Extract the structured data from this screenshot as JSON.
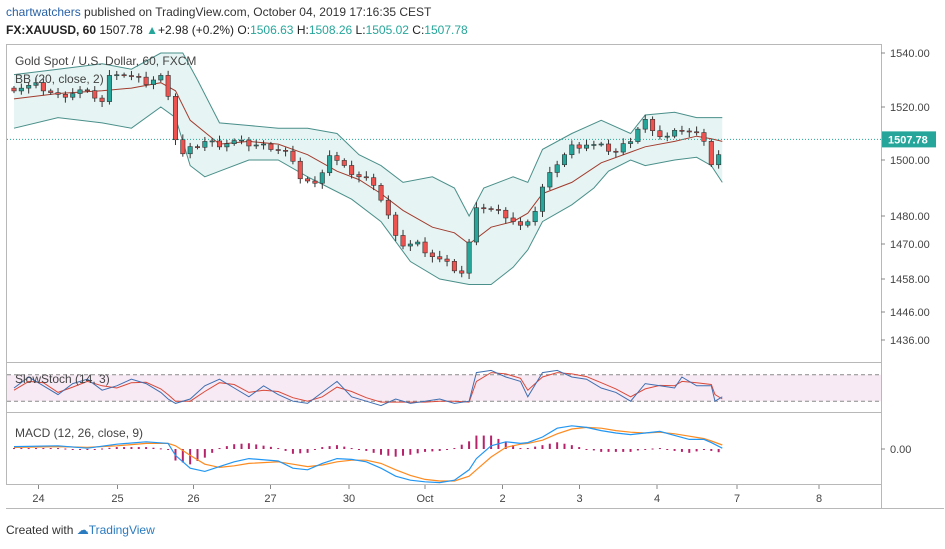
{
  "header": {
    "author": "chartwatchers",
    "published_text": "published on TradingView.com, October 04, 2019 17:16:35 CEST",
    "symbol": "FX:XAUUSD, 60",
    "last": "1507.78",
    "change": "+2.98 (+0.2%)",
    "o_label": "O:",
    "o_value": "1506.63",
    "h_label": "H:",
    "h_value": "1508.26",
    "l_label": "L:",
    "l_value": "1505.02",
    "c_label": "C:",
    "c_value": "1507.78"
  },
  "legends": {
    "main_title": "Gold Spot / U.S. Dollar, 60, FXCM",
    "bb": "BB (20, close, 2)",
    "stoch": "SlowStoch (14, 3)",
    "macd": "MACD (12, 26, close, 9)"
  },
  "footer": {
    "created_with": "Created with",
    "brand": "TradingView"
  },
  "colors": {
    "up": "#26a69a",
    "down": "#ef5350",
    "bb_fill": "#e6f5f3",
    "bb_band": "#4a8f8a",
    "bb_basis": "#a33b2e",
    "stoch_fill": "#f7eaf5",
    "k_line": "#3f6fb0",
    "d_line": "#d94a3a",
    "macd_line": "#2196f3",
    "signal_line": "#ff8a1f",
    "hist": "#b5236b",
    "last_line": "#26a69a"
  },
  "chart_data": [
    {
      "type": "candlestick",
      "title": "Gold Spot / U.S. Dollar, 60, FXCM",
      "overlay": "BB (20, close, 2)",
      "x_ticks": [
        "24",
        "25",
        "26",
        "27",
        "30",
        "Oct",
        "2",
        "3",
        "4",
        "7",
        "8"
      ],
      "y_ticks": [
        1540.0,
        1520.0,
        1507.78,
        1500.0,
        1480.0,
        1470.0,
        1458.0,
        1446.0,
        1436.0
      ],
      "last_price": 1507.78,
      "close_path": [
        [
          0,
          1527
        ],
        [
          3,
          1528
        ],
        [
          6,
          1524
        ],
        [
          9,
          1526
        ],
        [
          11,
          1524
        ],
        [
          12,
          1522
        ],
        [
          13,
          1531
        ],
        [
          14,
          1533
        ],
        [
          16,
          1531
        ],
        [
          18,
          1529
        ],
        [
          20,
          1531
        ],
        [
          21,
          1525
        ],
        [
          22,
          1508
        ],
        [
          23,
          1502
        ],
        [
          24,
          1504
        ],
        [
          26,
          1507
        ],
        [
          28,
          1506
        ],
        [
          30,
          1507
        ],
        [
          32,
          1506
        ],
        [
          35,
          1505
        ],
        [
          37,
          1503
        ],
        [
          39,
          1494
        ],
        [
          41,
          1491
        ],
        [
          43,
          1502
        ],
        [
          45,
          1497
        ],
        [
          47,
          1494
        ],
        [
          49,
          1492
        ],
        [
          50,
          1486
        ],
        [
          51,
          1480
        ],
        [
          52,
          1472
        ],
        [
          53,
          1470
        ],
        [
          55,
          1470
        ],
        [
          57,
          1466
        ],
        [
          59,
          1463
        ],
        [
          61,
          1460
        ],
        [
          62,
          1470
        ],
        [
          63,
          1484
        ],
        [
          65,
          1482
        ],
        [
          67,
          1480
        ],
        [
          69,
          1476
        ],
        [
          71,
          1482
        ],
        [
          72,
          1490
        ],
        [
          74,
          1499
        ],
        [
          76,
          1505
        ],
        [
          78,
          1506
        ],
        [
          80,
          1505
        ],
        [
          82,
          1503
        ],
        [
          84,
          1508
        ],
        [
          85,
          1512
        ],
        [
          86,
          1515
        ],
        [
          87,
          1510
        ],
        [
          89,
          1509
        ],
        [
          91,
          1512
        ],
        [
          93,
          1510
        ],
        [
          94,
          1506
        ],
        [
          95,
          1499
        ],
        [
          96,
          1502
        ],
        [
          96.5,
          1507.78
        ]
      ],
      "bb_upper": [
        [
          0,
          1532
        ],
        [
          6,
          1534
        ],
        [
          12,
          1536
        ],
        [
          16,
          1534
        ],
        [
          20,
          1540
        ],
        [
          23,
          1540
        ],
        [
          25,
          1530
        ],
        [
          28,
          1514
        ],
        [
          32,
          1513
        ],
        [
          36,
          1512
        ],
        [
          40,
          1512
        ],
        [
          44,
          1510
        ],
        [
          47,
          1502
        ],
        [
          50,
          1498
        ],
        [
          53,
          1492
        ],
        [
          57,
          1494
        ],
        [
          60,
          1490
        ],
        [
          62,
          1480
        ],
        [
          64,
          1490
        ],
        [
          68,
          1494
        ],
        [
          70,
          1492
        ],
        [
          72,
          1504
        ],
        [
          76,
          1510
        ],
        [
          80,
          1515
        ],
        [
          84,
          1510
        ],
        [
          86,
          1517
        ],
        [
          90,
          1518
        ],
        [
          93,
          1516
        ],
        [
          95,
          1516
        ],
        [
          96.5,
          1516
        ]
      ],
      "bb_lower": [
        [
          0,
          1512
        ],
        [
          6,
          1516
        ],
        [
          12,
          1514
        ],
        [
          16,
          1512
        ],
        [
          20,
          1520
        ],
        [
          22,
          1516
        ],
        [
          24,
          1498
        ],
        [
          26,
          1494
        ],
        [
          28,
          1496
        ],
        [
          32,
          1500
        ],
        [
          36,
          1500
        ],
        [
          40,
          1494
        ],
        [
          43,
          1490
        ],
        [
          46,
          1486
        ],
        [
          50,
          1478
        ],
        [
          54,
          1464
        ],
        [
          58,
          1458
        ],
        [
          62,
          1456
        ],
        [
          65,
          1456
        ],
        [
          68,
          1462
        ],
        [
          70,
          1468
        ],
        [
          72,
          1478
        ],
        [
          76,
          1484
        ],
        [
          79,
          1490
        ],
        [
          81,
          1496
        ],
        [
          84,
          1500
        ],
        [
          86,
          1498
        ],
        [
          90,
          1500
        ],
        [
          93,
          1501
        ],
        [
          95,
          1498
        ],
        [
          96.5,
          1492
        ]
      ],
      "bb_basis": [
        [
          0,
          1523
        ],
        [
          6,
          1525
        ],
        [
          12,
          1526
        ],
        [
          16,
          1527
        ],
        [
          20,
          1529
        ],
        [
          22,
          1526
        ],
        [
          24,
          1515
        ],
        [
          28,
          1506
        ],
        [
          32,
          1507
        ],
        [
          36,
          1506
        ],
        [
          40,
          1502
        ],
        [
          44,
          1496
        ],
        [
          47,
          1493
        ],
        [
          50,
          1488
        ],
        [
          53,
          1482
        ],
        [
          57,
          1476
        ],
        [
          60,
          1474
        ],
        [
          62,
          1470
        ],
        [
          65,
          1476
        ],
        [
          68,
          1478
        ],
        [
          70,
          1481
        ],
        [
          72,
          1488
        ],
        [
          76,
          1492
        ],
        [
          80,
          1499
        ],
        [
          84,
          1503
        ],
        [
          86,
          1505
        ],
        [
          90,
          1507
        ],
        [
          93,
          1509
        ],
        [
          95,
          1508
        ],
        [
          96.5,
          1507
        ]
      ]
    },
    {
      "type": "line",
      "title": "SlowStoch (14, 3)",
      "bands": [
        20,
        80
      ],
      "ylim": [
        0,
        100
      ],
      "k": [
        [
          0,
          50
        ],
        [
          2,
          75
        ],
        [
          4,
          55
        ],
        [
          6,
          35
        ],
        [
          8,
          60
        ],
        [
          10,
          70
        ],
        [
          12,
          45
        ],
        [
          14,
          55
        ],
        [
          16,
          70
        ],
        [
          18,
          60
        ],
        [
          20,
          40
        ],
        [
          21,
          25
        ],
        [
          22,
          15
        ],
        [
          24,
          25
        ],
        [
          26,
          55
        ],
        [
          28,
          70
        ],
        [
          30,
          50
        ],
        [
          32,
          30
        ],
        [
          34,
          55
        ],
        [
          36,
          35
        ],
        [
          38,
          20
        ],
        [
          40,
          15
        ],
        [
          42,
          40
        ],
        [
          44,
          65
        ],
        [
          46,
          30
        ],
        [
          48,
          20
        ],
        [
          50,
          10
        ],
        [
          52,
          25
        ],
        [
          54,
          15
        ],
        [
          56,
          20
        ],
        [
          58,
          25
        ],
        [
          60,
          15
        ],
        [
          62,
          20
        ],
        [
          63,
          85
        ],
        [
          65,
          90
        ],
        [
          67,
          75
        ],
        [
          69,
          65
        ],
        [
          70,
          30
        ],
        [
          72,
          85
        ],
        [
          74,
          90
        ],
        [
          76,
          75
        ],
        [
          78,
          70
        ],
        [
          80,
          50
        ],
        [
          82,
          40
        ],
        [
          84,
          20
        ],
        [
          86,
          60
        ],
        [
          88,
          55
        ],
        [
          90,
          50
        ],
        [
          91,
          75
        ],
        [
          93,
          55
        ],
        [
          95,
          55
        ],
        [
          95.5,
          20
        ],
        [
          96.5,
          30
        ]
      ],
      "d": [
        [
          0,
          45
        ],
        [
          2,
          65
        ],
        [
          4,
          62
        ],
        [
          6,
          40
        ],
        [
          8,
          52
        ],
        [
          10,
          65
        ],
        [
          12,
          55
        ],
        [
          14,
          50
        ],
        [
          16,
          62
        ],
        [
          18,
          63
        ],
        [
          20,
          48
        ],
        [
          21,
          35
        ],
        [
          22,
          20
        ],
        [
          24,
          20
        ],
        [
          26,
          42
        ],
        [
          28,
          62
        ],
        [
          30,
          58
        ],
        [
          32,
          40
        ],
        [
          34,
          45
        ],
        [
          36,
          42
        ],
        [
          38,
          28
        ],
        [
          40,
          20
        ],
        [
          42,
          30
        ],
        [
          44,
          52
        ],
        [
          46,
          42
        ],
        [
          48,
          28
        ],
        [
          50,
          18
        ],
        [
          52,
          18
        ],
        [
          54,
          18
        ],
        [
          56,
          18
        ],
        [
          58,
          20
        ],
        [
          60,
          20
        ],
        [
          62,
          18
        ],
        [
          63,
          65
        ],
        [
          65,
          85
        ],
        [
          67,
          82
        ],
        [
          69,
          72
        ],
        [
          70,
          45
        ],
        [
          72,
          75
        ],
        [
          74,
          85
        ],
        [
          76,
          82
        ],
        [
          78,
          76
        ],
        [
          80,
          62
        ],
        [
          82,
          48
        ],
        [
          84,
          30
        ],
        [
          86,
          48
        ],
        [
          88,
          56
        ],
        [
          90,
          55
        ],
        [
          91,
          65
        ],
        [
          93,
          62
        ],
        [
          95,
          58
        ],
        [
          95.5,
          35
        ],
        [
          96.5,
          25
        ]
      ]
    },
    {
      "type": "line",
      "title": "MACD (12, 26, close, 9)",
      "y_ticks": [
        0.0
      ],
      "ylim": [
        -5,
        3
      ],
      "macd": [
        [
          0,
          0.3
        ],
        [
          6,
          0.4
        ],
        [
          10,
          0.1
        ],
        [
          14,
          0.6
        ],
        [
          18,
          0.9
        ],
        [
          21,
          0.7
        ],
        [
          22,
          -0.8
        ],
        [
          24,
          -2.4
        ],
        [
          26,
          -2.8
        ],
        [
          28,
          -2.2
        ],
        [
          30,
          -1.6
        ],
        [
          32,
          -1.2
        ],
        [
          36,
          -1.5
        ],
        [
          38,
          -2.4
        ],
        [
          40,
          -2.6
        ],
        [
          42,
          -1.8
        ],
        [
          44,
          -1.2
        ],
        [
          46,
          -1.3
        ],
        [
          48,
          -1.6
        ],
        [
          50,
          -2.4
        ],
        [
          52,
          -3.4
        ],
        [
          54,
          -3.9
        ],
        [
          56,
          -4.1
        ],
        [
          58,
          -4.2
        ],
        [
          60,
          -3.9
        ],
        [
          62,
          -2.6
        ],
        [
          63,
          -1.2
        ],
        [
          65,
          0.4
        ],
        [
          67,
          0.9
        ],
        [
          69,
          0.7
        ],
        [
          70,
          0.8
        ],
        [
          72,
          1.5
        ],
        [
          74,
          2.6
        ],
        [
          76,
          2.9
        ],
        [
          78,
          2.7
        ],
        [
          80,
          2.3
        ],
        [
          82,
          2.0
        ],
        [
          84,
          1.8
        ],
        [
          86,
          2.0
        ],
        [
          88,
          2.2
        ],
        [
          90,
          1.7
        ],
        [
          92,
          1.2
        ],
        [
          94,
          1.2
        ],
        [
          95,
          0.8
        ],
        [
          96.5,
          0.1
        ]
      ],
      "signal": [
        [
          0,
          0.2
        ],
        [
          6,
          0.3
        ],
        [
          10,
          0.2
        ],
        [
          14,
          0.4
        ],
        [
          18,
          0.7
        ],
        [
          21,
          0.7
        ],
        [
          22,
          0.4
        ],
        [
          24,
          -0.8
        ],
        [
          26,
          -1.9
        ],
        [
          28,
          -2.3
        ],
        [
          30,
          -2.1
        ],
        [
          32,
          -1.8
        ],
        [
          36,
          -1.6
        ],
        [
          38,
          -1.9
        ],
        [
          40,
          -2.2
        ],
        [
          42,
          -2.0
        ],
        [
          44,
          -1.6
        ],
        [
          46,
          -1.4
        ],
        [
          48,
          -1.4
        ],
        [
          50,
          -1.8
        ],
        [
          52,
          -2.6
        ],
        [
          54,
          -3.3
        ],
        [
          56,
          -3.8
        ],
        [
          58,
          -4.0
        ],
        [
          60,
          -4.0
        ],
        [
          62,
          -3.4
        ],
        [
          63,
          -2.6
        ],
        [
          65,
          -1.0
        ],
        [
          67,
          0.2
        ],
        [
          69,
          0.6
        ],
        [
          70,
          0.7
        ],
        [
          72,
          1.1
        ],
        [
          74,
          1.9
        ],
        [
          76,
          2.5
        ],
        [
          78,
          2.7
        ],
        [
          80,
          2.6
        ],
        [
          82,
          2.3
        ],
        [
          84,
          2.1
        ],
        [
          86,
          2.0
        ],
        [
          88,
          2.1
        ],
        [
          90,
          1.9
        ],
        [
          92,
          1.6
        ],
        [
          94,
          1.3
        ],
        [
          95,
          1.0
        ],
        [
          96.5,
          0.5
        ]
      ]
    }
  ]
}
